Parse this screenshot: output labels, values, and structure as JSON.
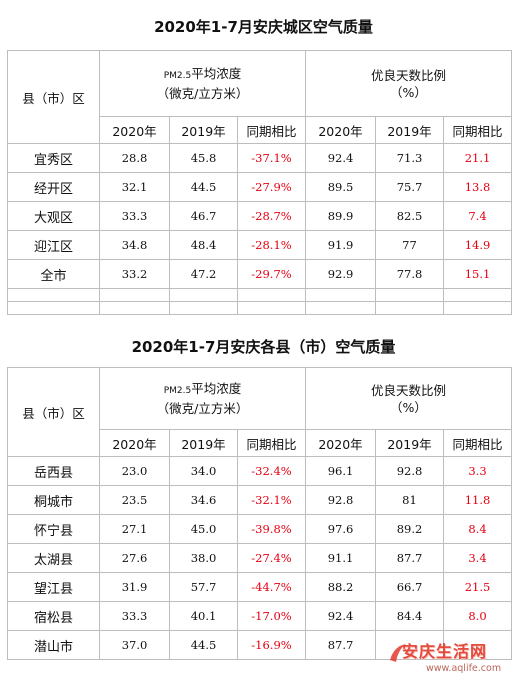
{
  "watermark": {
    "brand": "安庆生活网",
    "url": "www.aqlife.com"
  },
  "tables": [
    {
      "title": "2020年1-7月安庆城区空气质量",
      "region_header": "县（市）区",
      "pm_header_line1_prefix": "PM2.5",
      "pm_header_line1_suffix": "平均浓度",
      "pm_header_line2": "（微克/立方米）",
      "ratio_header_line1": "优良天数比例",
      "ratio_header_line2": "（%）",
      "subheaders": [
        "2020年",
        "2019年",
        "同期相比",
        "2020年",
        "2019年",
        "同期相比"
      ],
      "rows": [
        {
          "name": "宜秀区",
          "pm2020": "28.8",
          "pm2019": "45.8",
          "pm_change": "-37.1%",
          "r2020": "92.4",
          "r2019": "71.3",
          "r_change": "21.1"
        },
        {
          "name": "经开区",
          "pm2020": "32.1",
          "pm2019": "44.5",
          "pm_change": "-27.9%",
          "r2020": "89.5",
          "r2019": "75.7",
          "r_change": "13.8"
        },
        {
          "name": "大观区",
          "pm2020": "33.3",
          "pm2019": "46.7",
          "pm_change": "-28.7%",
          "r2020": "89.9",
          "r2019": "82.5",
          "r_change": "7.4"
        },
        {
          "name": "迎江区",
          "pm2020": "34.8",
          "pm2019": "48.4",
          "pm_change": "-28.1%",
          "r2020": "91.9",
          "r2019": "77",
          "r_change": "14.9"
        },
        {
          "name": "全市",
          "pm2020": "33.2",
          "pm2019": "47.2",
          "pm_change": "-29.7%",
          "r2020": "92.9",
          "r2019": "77.8",
          "r_change": "15.1"
        }
      ]
    },
    {
      "title": "2020年1-7月安庆各县（市）空气质量",
      "region_header": "县（市）区",
      "pm_header_line1_prefix": "PM2.5",
      "pm_header_line1_suffix": "平均浓度",
      "pm_header_line2": "（微克/立方米）",
      "ratio_header_line1": "优良天数比例",
      "ratio_header_line2": "（%）",
      "subheaders": [
        "2020年",
        "2019年",
        "同期相比",
        "2020年",
        "2019年",
        "同期相比"
      ],
      "rows": [
        {
          "name": "岳西县",
          "pm2020": "23.0",
          "pm2019": "34.0",
          "pm_change": "-32.4%",
          "r2020": "96.1",
          "r2019": "92.8",
          "r_change": "3.3"
        },
        {
          "name": "桐城市",
          "pm2020": "23.5",
          "pm2019": "34.6",
          "pm_change": "-32.1%",
          "r2020": "92.8",
          "r2019": "81",
          "r_change": "11.8"
        },
        {
          "name": "怀宁县",
          "pm2020": "27.1",
          "pm2019": "45.0",
          "pm_change": "-39.8%",
          "r2020": "97.6",
          "r2019": "89.2",
          "r_change": "8.4"
        },
        {
          "name": "太湖县",
          "pm2020": "27.6",
          "pm2019": "38.0",
          "pm_change": "-27.4%",
          "r2020": "91.1",
          "r2019": "87.7",
          "r_change": "3.4"
        },
        {
          "name": "望江县",
          "pm2020": "31.9",
          "pm2019": "57.7",
          "pm_change": "-44.7%",
          "r2020": "88.2",
          "r2019": "66.7",
          "r_change": "21.5"
        },
        {
          "name": "宿松县",
          "pm2020": "33.3",
          "pm2019": "40.1",
          "pm_change": "-17.0%",
          "r2020": "92.4",
          "r2019": "84.4",
          "r_change": "8.0"
        },
        {
          "name": "潜山市",
          "pm2020": "37.0",
          "pm2019": "44.5",
          "pm_change": "-16.9%",
          "r2020": "87.7",
          "r2019": "",
          "r_change": ""
        }
      ]
    }
  ]
}
